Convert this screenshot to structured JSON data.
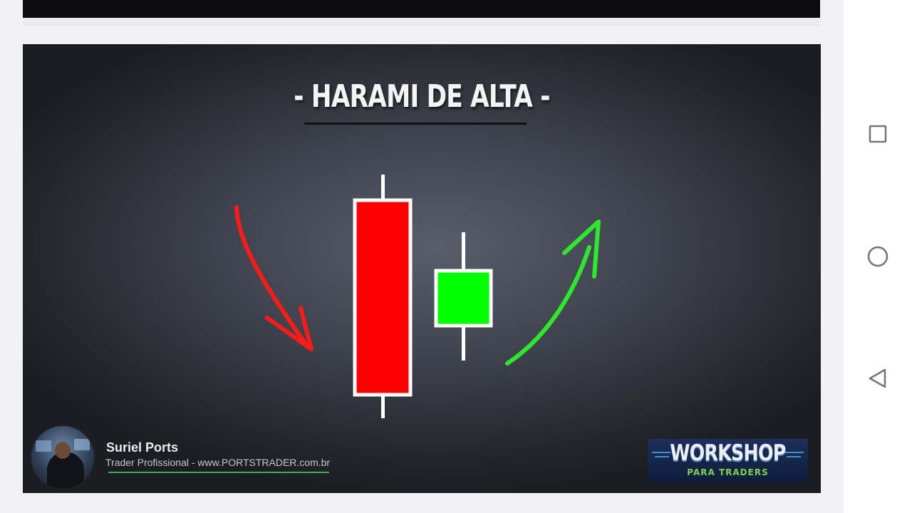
{
  "slide": {
    "title": "- HARAMI DE ALTA -",
    "author_name": "Suriel Ports",
    "author_subtitle": "Trader Profissional - www.PORTSTRADER.com.br",
    "logo_word": "WORKSHOP",
    "logo_subtitle": "PARA TRADERS"
  },
  "candles": [
    {
      "name": "bearish-candle",
      "color": "#ff0000",
      "role": "large red body"
    },
    {
      "name": "bullish-candle",
      "color": "#00ff00",
      "role": "small green body inside previous body"
    }
  ],
  "arrows": [
    {
      "name": "down-arrow-icon",
      "color": "#ff1a1a"
    },
    {
      "name": "up-arrow-icon",
      "color": "#2ee82e"
    }
  ],
  "nav": {
    "items": [
      {
        "name": "recents-button",
        "icon": "square-icon"
      },
      {
        "name": "home-button",
        "icon": "circle-icon"
      },
      {
        "name": "back-button",
        "icon": "triangle-back-icon"
      }
    ]
  }
}
